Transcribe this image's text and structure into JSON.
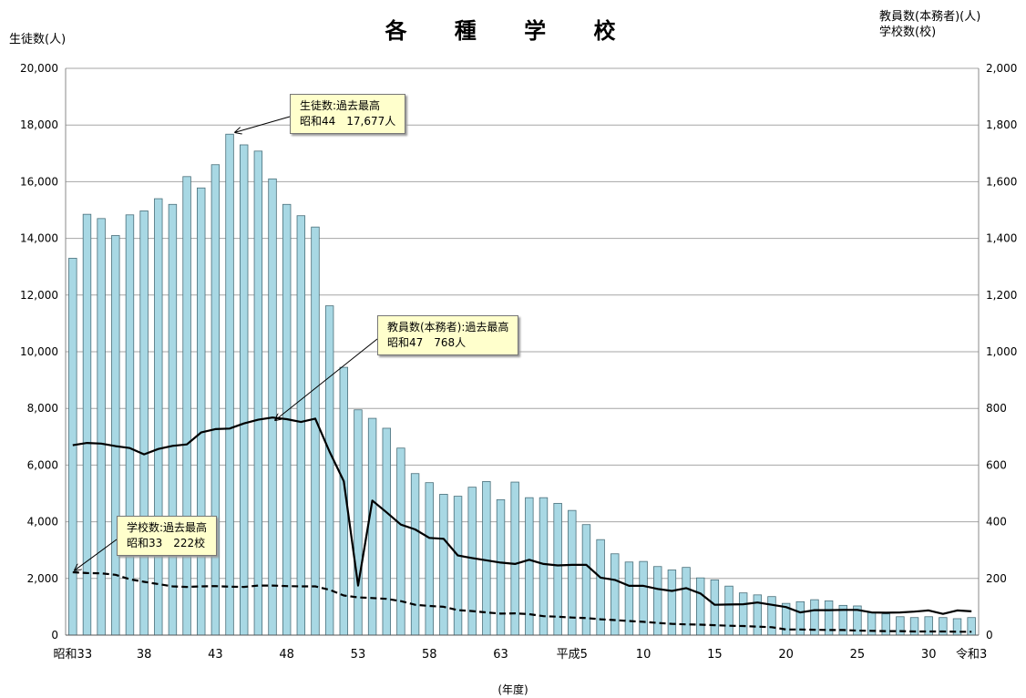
{
  "title": "各 種 学 校",
  "ylabel_left": "生徒数(人)",
  "ylabel_right_1": "教員数(本務者)(人)",
  "ylabel_right_2": "学校数(校)",
  "xlabel": "(年度)",
  "callouts": {
    "students": {
      "line1": "生徒数:過去最高",
      "line2": "昭和44　17,677人"
    },
    "teachers": {
      "line1": "教員数(本務者):過去最高",
      "line2": "昭和47　768人"
    },
    "schools": {
      "line1": "学校数:過去最高",
      "line2": "昭和33　222校"
    }
  },
  "colors": {
    "bar_fill": "#a8d8e4",
    "bar_stroke": "#4a6f7a",
    "grid": "#a6a6a6",
    "line": "#000000"
  },
  "chart_data": {
    "type": "bar",
    "title": "各 種 学 校",
    "xlabel": "(年度)",
    "ylabel": "生徒数(人)",
    "ylabel_right": "教員数(本務者)(人) / 学校数(校)",
    "ylim": [
      0,
      20000
    ],
    "ylim_right": [
      0,
      2000
    ],
    "grid": true,
    "categories": [
      "昭和33",
      "34",
      "35",
      "36",
      "37",
      "38",
      "39",
      "40",
      "41",
      "42",
      "43",
      "44",
      "45",
      "46",
      "47",
      "48",
      "49",
      "50",
      "51",
      "52",
      "53",
      "54",
      "55",
      "56",
      "57",
      "58",
      "59",
      "60",
      "61",
      "62",
      "63",
      "平成元",
      "平成2",
      "平成3",
      "平成4",
      "平成5",
      "6",
      "7",
      "8",
      "9",
      "10",
      "11",
      "12",
      "13",
      "14",
      "15",
      "16",
      "17",
      "18",
      "19",
      "20",
      "21",
      "22",
      "23",
      "24",
      "25",
      "26",
      "27",
      "28",
      "29",
      "30",
      "令和元",
      "令和2",
      "令和3"
    ],
    "x_tick_labels": {
      "0": "昭和33",
      "5": "38",
      "10": "43",
      "15": "48",
      "20": "53",
      "25": "58",
      "30": "63",
      "35": "平成5",
      "40": "10",
      "45": "15",
      "50": "20",
      "55": "25",
      "60": "30",
      "63": "令和3"
    },
    "y_ticks_left": [
      "0",
      "2,000",
      "4,000",
      "6,000",
      "8,000",
      "10,000",
      "12,000",
      "14,000",
      "16,000",
      "18,000",
      "20,000"
    ],
    "y_ticks_right": [
      "0",
      "200",
      "400",
      "600",
      "800",
      "1,000",
      "1,200",
      "1,400",
      "1,600",
      "1,800",
      "2,000"
    ],
    "series": [
      {
        "name": "生徒数",
        "type": "bar",
        "axis": "left",
        "values": [
          13300,
          14850,
          14700,
          14100,
          14830,
          14970,
          15400,
          15200,
          16180,
          15780,
          16600,
          17677,
          17300,
          17080,
          16100,
          15200,
          14800,
          14400,
          11620,
          9450,
          7950,
          7650,
          7300,
          6600,
          5700,
          5380,
          4970,
          4900,
          5220,
          5420,
          4780,
          5400,
          4850,
          4850,
          4650,
          4400,
          3900,
          3370,
          2870,
          2580,
          2600,
          2420,
          2300,
          2390,
          2020,
          1950,
          1730,
          1490,
          1420,
          1360,
          1120,
          1180,
          1250,
          1210,
          1050,
          1030,
          800,
          750,
          650,
          620,
          650,
          620,
          580,
          620
        ]
      },
      {
        "name": "教員数(本務者)",
        "type": "line",
        "axis": "right",
        "values": [
          670,
          678,
          676,
          667,
          660,
          638,
          657,
          668,
          673,
          715,
          727,
          729,
          747,
          760,
          768,
          762,
          752,
          764,
          648,
          543,
          175,
          475,
          433,
          390,
          373,
          343,
          340,
          281,
          272,
          264,
          256,
          251,
          266,
          251,
          246,
          248,
          248,
          203,
          195,
          174,
          174,
          163,
          156,
          166,
          147,
          107,
          108,
          109,
          115,
          107,
          99,
          80,
          88,
          88,
          89,
          89,
          80,
          79,
          80,
          83,
          87,
          75,
          87,
          84
        ]
      },
      {
        "name": "学校数",
        "type": "line",
        "axis": "right",
        "style": "dashed",
        "values": [
          222,
          219,
          218,
          213,
          197,
          188,
          180,
          172,
          170,
          172,
          173,
          171,
          170,
          175,
          175,
          173,
          172,
          172,
          160,
          140,
          133,
          131,
          128,
          120,
          107,
          103,
          100,
          88,
          85,
          80,
          76,
          77,
          74,
          67,
          65,
          62,
          60,
          56,
          53,
          50,
          47,
          43,
          40,
          38,
          37,
          35,
          33,
          32,
          30,
          28,
          20,
          20,
          19,
          18,
          18,
          16,
          15,
          14,
          14,
          13,
          13,
          13,
          12,
          12
        ]
      }
    ]
  }
}
